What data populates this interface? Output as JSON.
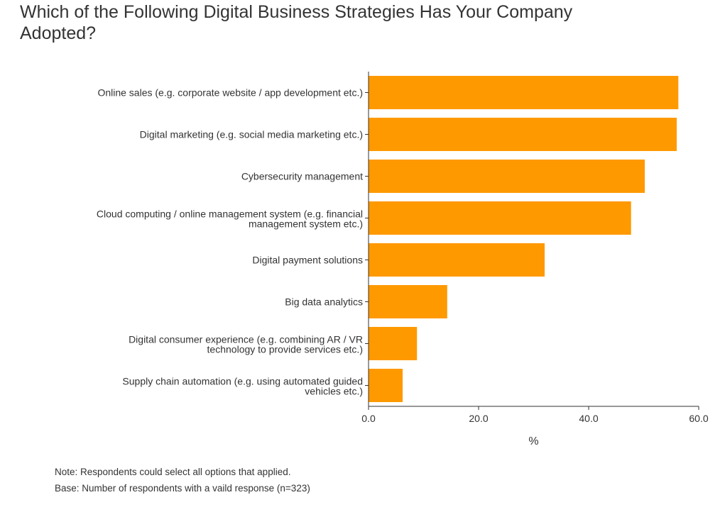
{
  "title": "Which of the Following Digital Business Strategies Has Your Company Adopted?",
  "notes": {
    "note": "Note: Respondents could select all options that applied.",
    "base": "Base: Number of respondents with a vaild response (n=323)"
  },
  "colors": {
    "bar": "#ff9900",
    "axis": "#333333"
  },
  "chart_data": {
    "type": "bar",
    "orientation": "horizontal",
    "categories": [
      [
        "Online sales (e.g. corporate website / app development etc.)"
      ],
      [
        "Digital marketing (e.g. social media marketing etc.)"
      ],
      [
        "Cybersecurity management"
      ],
      [
        "Cloud computing / online management system (e.g. financial",
        "management system etc.)"
      ],
      [
        "Digital payment solutions"
      ],
      [
        "Big data analytics"
      ],
      [
        "Digital consumer experience (e.g. combining AR / VR",
        "technology to provide services etc.)"
      ],
      [
        "Supply chain automation (e.g. using automated guided",
        "vehicles etc.)"
      ]
    ],
    "values": [
      56.3,
      56.0,
      50.2,
      47.7,
      32.0,
      14.3,
      8.8,
      6.2
    ],
    "xlabel": "%",
    "xlim": [
      0,
      60
    ],
    "xticks": [
      "0.0",
      "20.0",
      "40.0",
      "60.0"
    ],
    "grid": false
  }
}
